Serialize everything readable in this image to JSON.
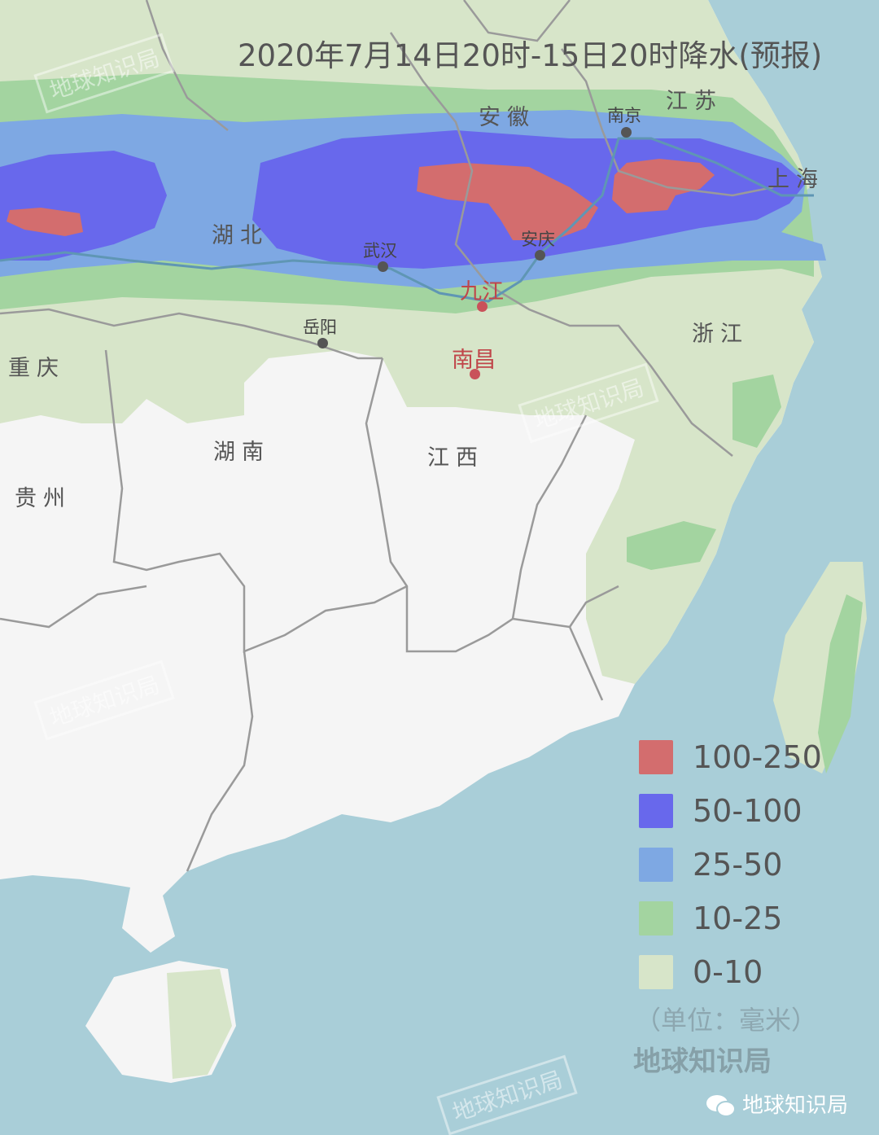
{
  "title": "2020年7月14日20时-15日20时降水(预报)",
  "colors": {
    "sea": "#a9ced8",
    "land": "#f5f5f5",
    "boundary": "#9a9a9a"
  },
  "provinces": [
    "江苏",
    "安徽",
    "上海",
    "湖北",
    "浙江",
    "重庆",
    "湖南",
    "江西",
    "贵州"
  ],
  "cities": [
    {
      "name": "南京",
      "highlight": false
    },
    {
      "name": "武汉",
      "highlight": false
    },
    {
      "name": "安庆",
      "highlight": false
    },
    {
      "name": "岳阳",
      "highlight": false
    },
    {
      "name": "九江",
      "highlight": true
    },
    {
      "name": "南昌",
      "highlight": true
    }
  ],
  "legend": {
    "items": [
      {
        "label": "100-250",
        "color": "#d36d6e"
      },
      {
        "label": "50-100",
        "color": "#6868ec"
      },
      {
        "label": "25-50",
        "color": "#7ea8e3"
      },
      {
        "label": "10-25",
        "color": "#a3d4a0"
      },
      {
        "label": "0-10",
        "color": "#d7e5c9"
      }
    ],
    "unit": "（单位：毫米）"
  },
  "brand": "地球知识局",
  "wechat_label": "地球知识局",
  "watermark": "地球知识局"
}
